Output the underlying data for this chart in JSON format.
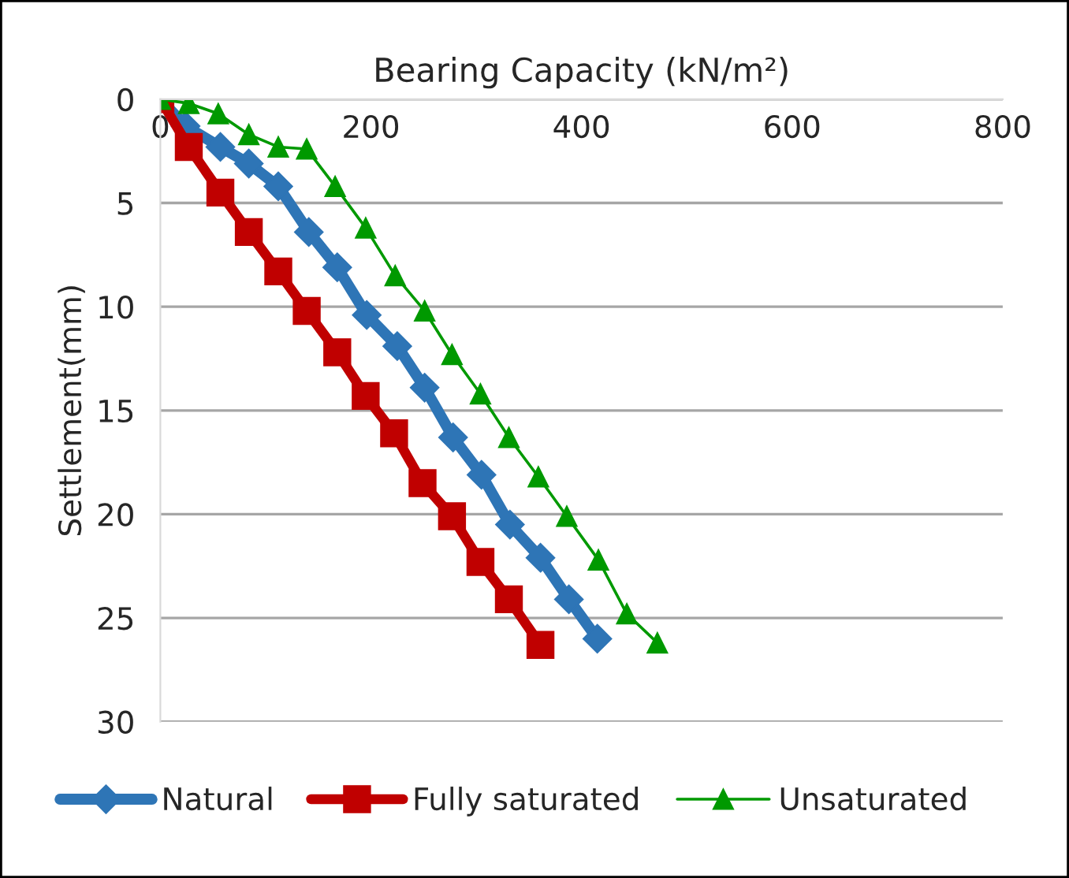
{
  "chart_data": {
    "type": "line",
    "xlabel": "Bearing Capacity (kN/m²)",
    "ylabel": "Settlement(mm)",
    "xlim": [
      0,
      800
    ],
    "xticks": [
      0,
      200,
      400,
      600,
      800
    ],
    "ylim": [
      30,
      0
    ],
    "yticks": [
      0,
      5,
      10,
      15,
      20,
      25,
      30
    ],
    "grid": "y",
    "legend": "bottom",
    "series": [
      {
        "name": "Natural",
        "color": "#2e75b6",
        "marker": "diamond",
        "x": [
          0,
          24,
          57,
          84,
          112,
          141,
          168,
          196,
          225,
          251,
          278,
          305,
          332,
          361,
          388,
          415
        ],
        "values": [
          0,
          1.3,
          2.3,
          3.1,
          4.2,
          6.4,
          8.1,
          10.4,
          11.9,
          13.9,
          16.3,
          18.1,
          20.5,
          22.1,
          24.1,
          26.0
        ]
      },
      {
        "name": "Fully saturated",
        "color": "#c00000",
        "marker": "square",
        "x": [
          0,
          27,
          57,
          84,
          112,
          139,
          168,
          195,
          222,
          249,
          277,
          304,
          331,
          361
        ],
        "values": [
          0,
          2.3,
          4.5,
          6.4,
          8.3,
          10.2,
          12.2,
          14.3,
          16.1,
          18.5,
          20.1,
          22.3,
          24.1,
          26.3
        ]
      },
      {
        "name": "Unsaturated",
        "color": "#009900",
        "marker": "triangle",
        "x": [
          0,
          27,
          55,
          84,
          112,
          139,
          166,
          195,
          223,
          251,
          277,
          304,
          331,
          359,
          386,
          416,
          443,
          472
        ],
        "values": [
          0,
          0.2,
          0.7,
          1.7,
          2.3,
          2.4,
          4.2,
          6.2,
          8.5,
          10.2,
          12.3,
          14.2,
          16.3,
          18.2,
          20.1,
          22.2,
          24.8,
          26.2
        ]
      }
    ]
  }
}
